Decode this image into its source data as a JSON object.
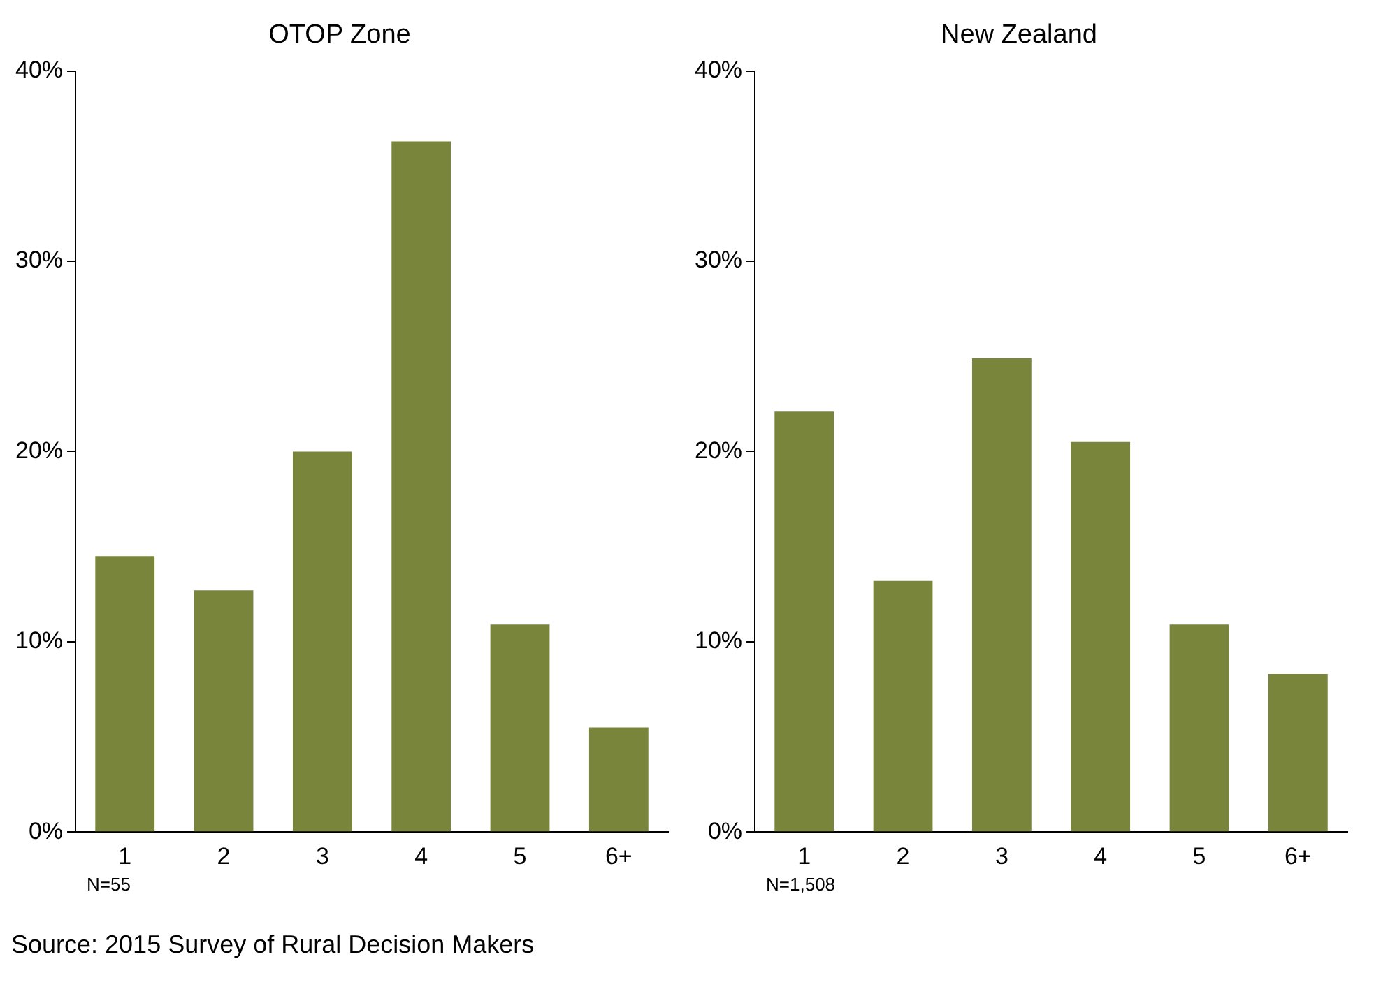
{
  "chart_data": [
    {
      "type": "bar",
      "title": "OTOP Zone",
      "categories": [
        "1",
        "2",
        "3",
        "4",
        "5",
        "6+"
      ],
      "values": [
        14.5,
        12.7,
        20.0,
        36.3,
        10.9,
        5.5
      ],
      "color": "#7a853c",
      "ylim": [
        0,
        40
      ],
      "yticks": [
        {
          "value": 0,
          "label": "0%"
        },
        {
          "value": 10,
          "label": "10%"
        },
        {
          "value": 20,
          "label": "20%"
        },
        {
          "value": 30,
          "label": "30%"
        },
        {
          "value": 40,
          "label": "40%"
        }
      ],
      "grid": false,
      "legend": false,
      "annotations": [
        "N=55",
        "Source: 2015 Survey of Rural Decision Makers"
      ]
    },
    {
      "type": "bar",
      "title": "New Zealand",
      "categories": [
        "1",
        "2",
        "3",
        "4",
        "5",
        "6+"
      ],
      "values": [
        22.1,
        13.2,
        24.9,
        20.5,
        10.9,
        8.3
      ],
      "color": "#7a853c",
      "ylim": [
        0,
        40
      ],
      "yticks": [
        {
          "value": 0,
          "label": "0%"
        },
        {
          "value": 10,
          "label": "10%"
        },
        {
          "value": 20,
          "label": "20%"
        },
        {
          "value": 30,
          "label": "30%"
        },
        {
          "value": 40,
          "label": "40%"
        }
      ],
      "grid": false,
      "legend": false,
      "annotations": [
        "N=1,508"
      ]
    }
  ]
}
